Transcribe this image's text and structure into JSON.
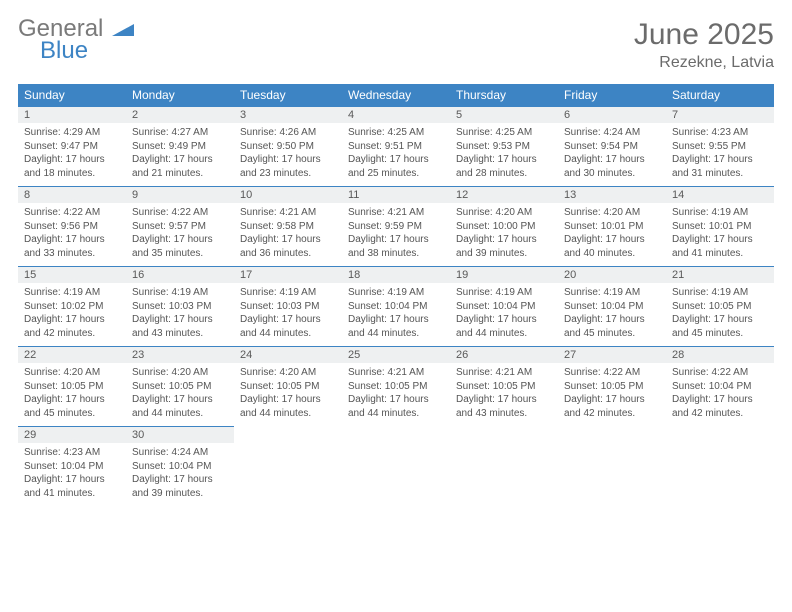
{
  "brand": {
    "word1": "General",
    "word2": "Blue"
  },
  "title": {
    "month": "June 2025",
    "location": "Rezekne, Latvia"
  },
  "colors": {
    "header_bg": "#3d84c4",
    "header_text": "#ffffff",
    "daynum_bg": "#eef0f1",
    "body_text": "#555555",
    "rule": "#3d84c4",
    "page_bg": "#ffffff"
  },
  "typography": {
    "month_fontsize": 30,
    "location_fontsize": 16,
    "dayhead_fontsize": 12,
    "daynum_fontsize": 11,
    "body_fontsize": 10
  },
  "day_headers": [
    "Sunday",
    "Monday",
    "Tuesday",
    "Wednesday",
    "Thursday",
    "Friday",
    "Saturday"
  ],
  "weeks": [
    [
      {
        "num": "1",
        "sunrise": "Sunrise: 4:29 AM",
        "sunset": "Sunset: 9:47 PM",
        "day1": "Daylight: 17 hours",
        "day2": "and 18 minutes."
      },
      {
        "num": "2",
        "sunrise": "Sunrise: 4:27 AM",
        "sunset": "Sunset: 9:49 PM",
        "day1": "Daylight: 17 hours",
        "day2": "and 21 minutes."
      },
      {
        "num": "3",
        "sunrise": "Sunrise: 4:26 AM",
        "sunset": "Sunset: 9:50 PM",
        "day1": "Daylight: 17 hours",
        "day2": "and 23 minutes."
      },
      {
        "num": "4",
        "sunrise": "Sunrise: 4:25 AM",
        "sunset": "Sunset: 9:51 PM",
        "day1": "Daylight: 17 hours",
        "day2": "and 25 minutes."
      },
      {
        "num": "5",
        "sunrise": "Sunrise: 4:25 AM",
        "sunset": "Sunset: 9:53 PM",
        "day1": "Daylight: 17 hours",
        "day2": "and 28 minutes."
      },
      {
        "num": "6",
        "sunrise": "Sunrise: 4:24 AM",
        "sunset": "Sunset: 9:54 PM",
        "day1": "Daylight: 17 hours",
        "day2": "and 30 minutes."
      },
      {
        "num": "7",
        "sunrise": "Sunrise: 4:23 AM",
        "sunset": "Sunset: 9:55 PM",
        "day1": "Daylight: 17 hours",
        "day2": "and 31 minutes."
      }
    ],
    [
      {
        "num": "8",
        "sunrise": "Sunrise: 4:22 AM",
        "sunset": "Sunset: 9:56 PM",
        "day1": "Daylight: 17 hours",
        "day2": "and 33 minutes."
      },
      {
        "num": "9",
        "sunrise": "Sunrise: 4:22 AM",
        "sunset": "Sunset: 9:57 PM",
        "day1": "Daylight: 17 hours",
        "day2": "and 35 minutes."
      },
      {
        "num": "10",
        "sunrise": "Sunrise: 4:21 AM",
        "sunset": "Sunset: 9:58 PM",
        "day1": "Daylight: 17 hours",
        "day2": "and 36 minutes."
      },
      {
        "num": "11",
        "sunrise": "Sunrise: 4:21 AM",
        "sunset": "Sunset: 9:59 PM",
        "day1": "Daylight: 17 hours",
        "day2": "and 38 minutes."
      },
      {
        "num": "12",
        "sunrise": "Sunrise: 4:20 AM",
        "sunset": "Sunset: 10:00 PM",
        "day1": "Daylight: 17 hours",
        "day2": "and 39 minutes."
      },
      {
        "num": "13",
        "sunrise": "Sunrise: 4:20 AM",
        "sunset": "Sunset: 10:01 PM",
        "day1": "Daylight: 17 hours",
        "day2": "and 40 minutes."
      },
      {
        "num": "14",
        "sunrise": "Sunrise: 4:19 AM",
        "sunset": "Sunset: 10:01 PM",
        "day1": "Daylight: 17 hours",
        "day2": "and 41 minutes."
      }
    ],
    [
      {
        "num": "15",
        "sunrise": "Sunrise: 4:19 AM",
        "sunset": "Sunset: 10:02 PM",
        "day1": "Daylight: 17 hours",
        "day2": "and 42 minutes."
      },
      {
        "num": "16",
        "sunrise": "Sunrise: 4:19 AM",
        "sunset": "Sunset: 10:03 PM",
        "day1": "Daylight: 17 hours",
        "day2": "and 43 minutes."
      },
      {
        "num": "17",
        "sunrise": "Sunrise: 4:19 AM",
        "sunset": "Sunset: 10:03 PM",
        "day1": "Daylight: 17 hours",
        "day2": "and 44 minutes."
      },
      {
        "num": "18",
        "sunrise": "Sunrise: 4:19 AM",
        "sunset": "Sunset: 10:04 PM",
        "day1": "Daylight: 17 hours",
        "day2": "and 44 minutes."
      },
      {
        "num": "19",
        "sunrise": "Sunrise: 4:19 AM",
        "sunset": "Sunset: 10:04 PM",
        "day1": "Daylight: 17 hours",
        "day2": "and 44 minutes."
      },
      {
        "num": "20",
        "sunrise": "Sunrise: 4:19 AM",
        "sunset": "Sunset: 10:04 PM",
        "day1": "Daylight: 17 hours",
        "day2": "and 45 minutes."
      },
      {
        "num": "21",
        "sunrise": "Sunrise: 4:19 AM",
        "sunset": "Sunset: 10:05 PM",
        "day1": "Daylight: 17 hours",
        "day2": "and 45 minutes."
      }
    ],
    [
      {
        "num": "22",
        "sunrise": "Sunrise: 4:20 AM",
        "sunset": "Sunset: 10:05 PM",
        "day1": "Daylight: 17 hours",
        "day2": "and 45 minutes."
      },
      {
        "num": "23",
        "sunrise": "Sunrise: 4:20 AM",
        "sunset": "Sunset: 10:05 PM",
        "day1": "Daylight: 17 hours",
        "day2": "and 44 minutes."
      },
      {
        "num": "24",
        "sunrise": "Sunrise: 4:20 AM",
        "sunset": "Sunset: 10:05 PM",
        "day1": "Daylight: 17 hours",
        "day2": "and 44 minutes."
      },
      {
        "num": "25",
        "sunrise": "Sunrise: 4:21 AM",
        "sunset": "Sunset: 10:05 PM",
        "day1": "Daylight: 17 hours",
        "day2": "and 44 minutes."
      },
      {
        "num": "26",
        "sunrise": "Sunrise: 4:21 AM",
        "sunset": "Sunset: 10:05 PM",
        "day1": "Daylight: 17 hours",
        "day2": "and 43 minutes."
      },
      {
        "num": "27",
        "sunrise": "Sunrise: 4:22 AM",
        "sunset": "Sunset: 10:05 PM",
        "day1": "Daylight: 17 hours",
        "day2": "and 42 minutes."
      },
      {
        "num": "28",
        "sunrise": "Sunrise: 4:22 AM",
        "sunset": "Sunset: 10:04 PM",
        "day1": "Daylight: 17 hours",
        "day2": "and 42 minutes."
      }
    ],
    [
      {
        "num": "29",
        "sunrise": "Sunrise: 4:23 AM",
        "sunset": "Sunset: 10:04 PM",
        "day1": "Daylight: 17 hours",
        "day2": "and 41 minutes."
      },
      {
        "num": "30",
        "sunrise": "Sunrise: 4:24 AM",
        "sunset": "Sunset: 10:04 PM",
        "day1": "Daylight: 17 hours",
        "day2": "and 39 minutes."
      },
      null,
      null,
      null,
      null,
      null
    ]
  ]
}
